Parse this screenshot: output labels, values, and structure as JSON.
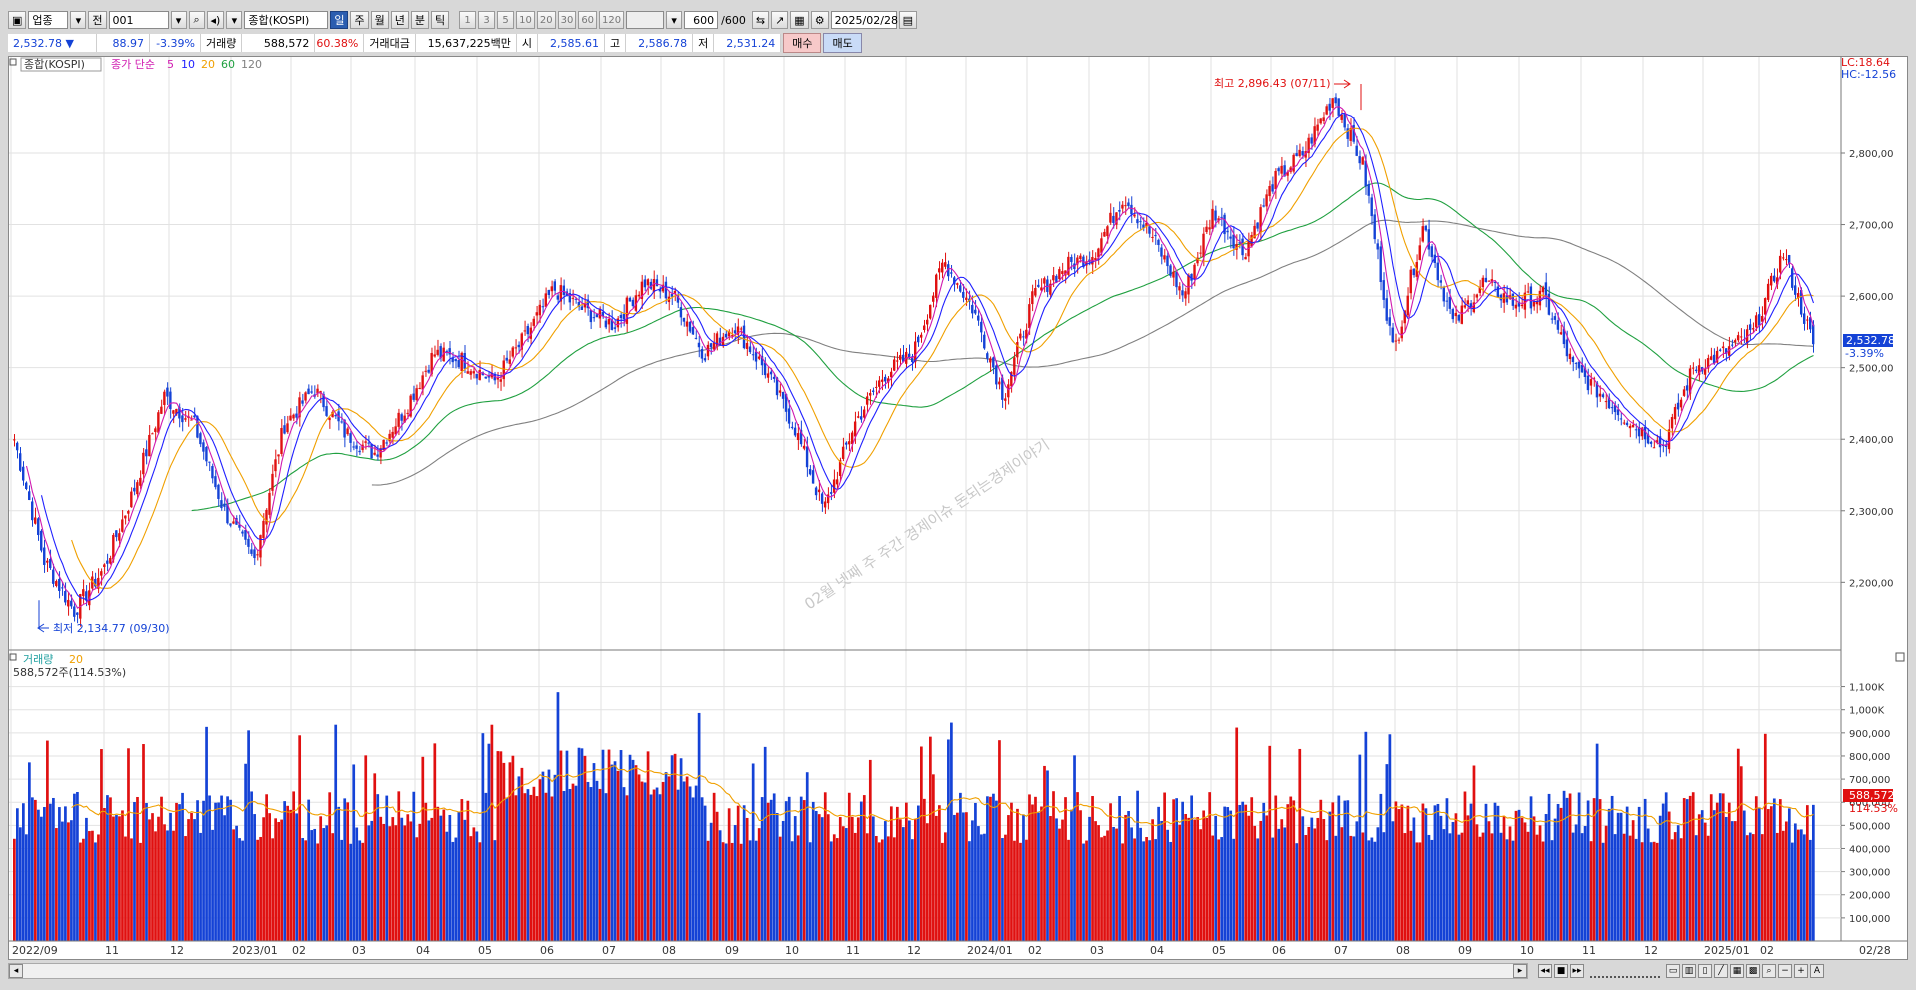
{
  "toolbar": {
    "market_label": "업종",
    "prev_label": "전",
    "code": "001",
    "name": "종합(KOSPI)",
    "periods": [
      "일",
      "주",
      "월",
      "년",
      "분",
      "틱"
    ],
    "active_period": "일",
    "intervals": [
      "1",
      "3",
      "5",
      "10",
      "20",
      "30",
      "60",
      "120"
    ],
    "count": "600",
    "count_total": "/600",
    "date": "2025/02/28"
  },
  "quote": {
    "price": "2,532.78 ▼",
    "change": "88.97",
    "change_pct": "-3.39%",
    "volume_label": "거래량",
    "volume": "588,572",
    "volume_pct": "60.38%",
    "amount_label": "거래대금",
    "amount": "15,637,225백만",
    "open_label": "시",
    "open": "2,585.61",
    "high_label": "고",
    "high": "2,586.78",
    "low_label": "저",
    "low": "2,531.24",
    "buy_label": "매수",
    "sell_label": "매도"
  },
  "price_panel": {
    "legend_name": "종합(KOSPI)",
    "legend_ma": "종가 단순",
    "ma_labels": [
      "5",
      "10",
      "20",
      "60",
      "120"
    ],
    "ma_colors": [
      "#d01ab0",
      "#2020ff",
      "#f0a000",
      "#20a040",
      "#808080"
    ],
    "lc": "LC:18.64",
    "hc": "HC:-12.56",
    "max_annotation": "최고 2,896.43 (07/11)",
    "min_annotation": "최저 2,134.77 (09/30)",
    "last_price_tag": "2,532.78",
    "last_change_tag": "-3.39%",
    "y_ticks": [
      "2,800,00",
      "2,700,00",
      "2,600,00",
      "2,500,00",
      "2,400,00",
      "2,300,00",
      "2,200,00"
    ],
    "watermark": "02월 넷째 주 주간 경제이슈 돈되는경제이야기"
  },
  "volume_panel": {
    "legend_name": "거래량",
    "legend_ma": "20",
    "info": "588,572주(114.53%)",
    "last_volume_tag": "588,572",
    "last_pct_tag": "114.53%",
    "y_ticks": [
      "1,100K",
      "1,000K",
      "900,000",
      "800,000",
      "700,000",
      "600,000",
      "500,000",
      "400,000",
      "300,000",
      "200,000",
      "100,000"
    ]
  },
  "x_axis": {
    "labels": [
      "2022/09",
      "11",
      "12",
      "2023/01",
      "02",
      "03",
      "04",
      "05",
      "06",
      "07",
      "08",
      "09",
      "10",
      "11",
      "12",
      "2024/01",
      "02",
      "03",
      "04",
      "05",
      "06",
      "07",
      "08",
      "09",
      "10",
      "11",
      "12",
      "2025/01",
      "02"
    ],
    "end_label": "02/28"
  },
  "chart_data": {
    "type": "candlestick",
    "title": "종합(KOSPI)",
    "period": "daily",
    "x_range": [
      "2022/09",
      "2025/02/28"
    ],
    "price_ylim": [
      2134.77,
      2896.43
    ],
    "max": {
      "value": 2896.43,
      "date": "07/11"
    },
    "min": {
      "value": 2134.77,
      "date": "09/30"
    },
    "last": {
      "close": 2532.78,
      "open": 2585.61,
      "high": 2586.78,
      "low": 2531.24,
      "change": -88.97,
      "change_pct": -3.39,
      "volume": 588572
    },
    "close_path": [
      [
        "2022/09",
        2400
      ],
      [
        "2022/09",
        2230
      ],
      [
        "2022/10",
        2160
      ],
      [
        "2022/10",
        2220
      ],
      [
        "2022/11",
        2330
      ],
      [
        "2022/11",
        2460
      ],
      [
        "2022/12",
        2420
      ],
      [
        "2022/12",
        2300
      ],
      [
        "2023/01",
        2230
      ],
      [
        "2023/01",
        2420
      ],
      [
        "2023/02",
        2470
      ],
      [
        "2023/02",
        2410
      ],
      [
        "2023/03",
        2380
      ],
      [
        "2023/03",
        2440
      ],
      [
        "2023/04",
        2520
      ],
      [
        "2023/04",
        2510
      ],
      [
        "2023/05",
        2480
      ],
      [
        "2023/05",
        2540
      ],
      [
        "2023/06",
        2610
      ],
      [
        "2023/06",
        2580
      ],
      [
        "2023/07",
        2560
      ],
      [
        "2023/07",
        2620
      ],
      [
        "2023/08",
        2600
      ],
      [
        "2023/08",
        2520
      ],
      [
        "2023/09",
        2560
      ],
      [
        "2023/09",
        2500
      ],
      [
        "2023/10",
        2420
      ],
      [
        "2023/10",
        2300
      ],
      [
        "2023/11",
        2420
      ],
      [
        "2023/11",
        2490
      ],
      [
        "2023/12",
        2520
      ],
      [
        "2023/12",
        2650
      ],
      [
        "2024/01",
        2580
      ],
      [
        "2024/01",
        2460
      ],
      [
        "2024/02",
        2600
      ],
      [
        "2024/02",
        2640
      ],
      [
        "2024/03",
        2660
      ],
      [
        "2024/03",
        2740
      ],
      [
        "2024/04",
        2680
      ],
      [
        "2024/04",
        2600
      ],
      [
        "2024/05",
        2720
      ],
      [
        "2024/05",
        2660
      ],
      [
        "2024/06",
        2760
      ],
      [
        "2024/06",
        2800
      ],
      [
        "2024/07",
        2880
      ],
      [
        "2024/07",
        2780
      ],
      [
        "2024/08",
        2520
      ],
      [
        "2024/08",
        2700
      ],
      [
        "2024/09",
        2560
      ],
      [
        "2024/09",
        2620
      ],
      [
        "2024/10",
        2590
      ],
      [
        "2024/10",
        2600
      ],
      [
        "2024/11",
        2500
      ],
      [
        "2024/11",
        2460
      ],
      [
        "2024/12",
        2420
      ],
      [
        "2024/12",
        2390
      ],
      [
        "2025/01",
        2500
      ],
      [
        "2025/01",
        2520
      ],
      [
        "2025/02",
        2550
      ],
      [
        "2025/02",
        2660
      ],
      [
        "2025/02/28",
        2532.78
      ]
    ],
    "volume_ylim": [
      0,
      1100000
    ],
    "volume_ma": "20"
  }
}
